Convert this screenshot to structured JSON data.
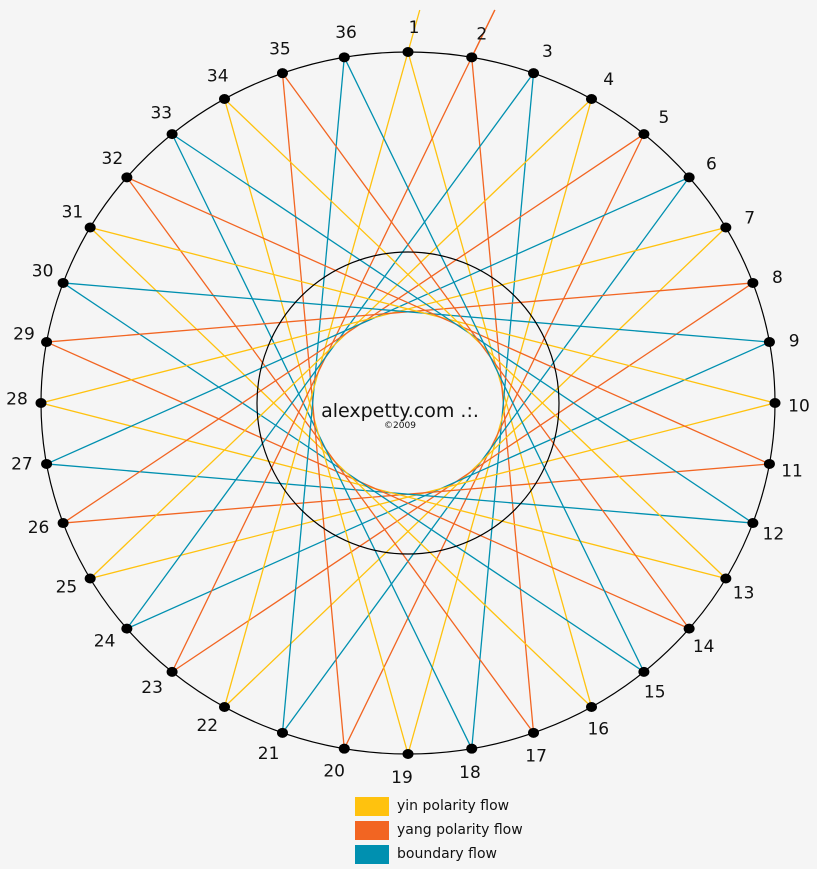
{
  "diagram": {
    "points": [
      "1",
      "2",
      "3",
      "4",
      "5",
      "6",
      "7",
      "8",
      "9",
      "10",
      "11",
      "12",
      "13",
      "14",
      "15",
      "16",
      "17",
      "18",
      "19",
      "20",
      "21",
      "22",
      "23",
      "24",
      "25",
      "26",
      "27",
      "28",
      "29",
      "30",
      "31",
      "32",
      "33",
      "34",
      "35",
      "36"
    ],
    "chord_step": 15,
    "center_title": "alexpetty.com .:.",
    "center_subtitle": "©2009",
    "colors": {
      "yin": "#FFC20E",
      "yang": "#F26522",
      "boundary": "#0090B0"
    }
  },
  "legend": [
    {
      "label": "yin polarity flow",
      "color": "#FFC20E"
    },
    {
      "label": "yang polarity flow",
      "color": "#F26522"
    },
    {
      "label": "boundary flow",
      "color": "#0090B0"
    }
  ]
}
